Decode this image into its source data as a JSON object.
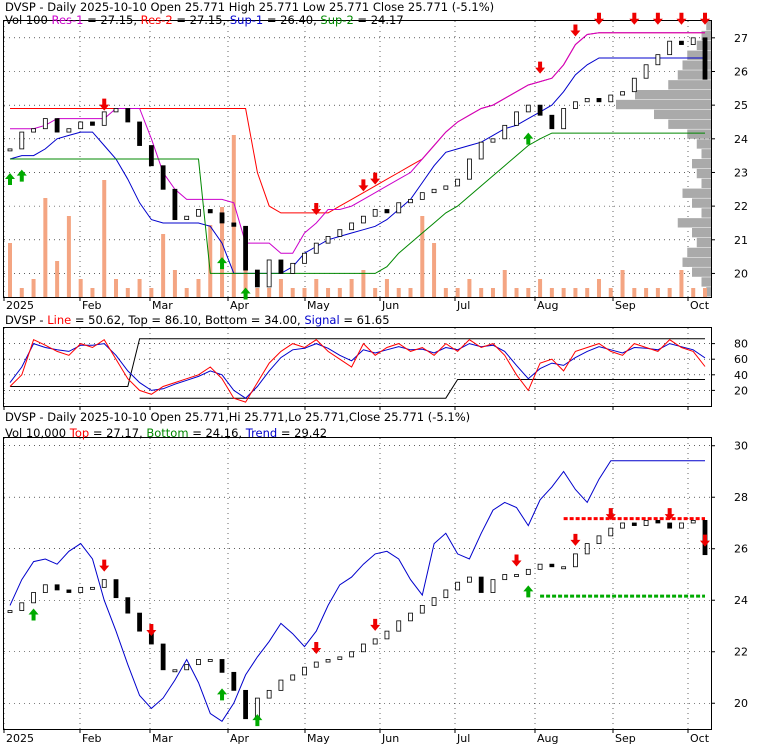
{
  "panels": {
    "p1": {
      "line1": [
        {
          "t": "DVSP - Daily 2025-10-10 Open 25.771  High 25.771  Low 25.771  Close 25.771 (-5.1%)",
          "c": "#000000"
        }
      ],
      "line2": [
        {
          "t": "Vol 100  ",
          "c": "#000000"
        },
        {
          "t": "Res-1",
          "c": "#cc00cc"
        },
        {
          "t": " = 27.15, ",
          "c": "#000000"
        },
        {
          "t": "Res-2",
          "c": "#ff0000"
        },
        {
          "t": " = 27.15, ",
          "c": "#000000"
        },
        {
          "t": "Sup-1",
          "c": "#0000cc"
        },
        {
          "t": " = 26.40, ",
          "c": "#000000"
        },
        {
          "t": "Sup-2",
          "c": "#008800"
        },
        {
          "t": " = 24.17",
          "c": "#000000"
        }
      ],
      "y_ticks": [
        "27",
        "26",
        "25",
        "24",
        "23",
        "22",
        "21",
        "20"
      ]
    },
    "p2": {
      "line1": [
        {
          "t": "DVSP - ",
          "c": "#000000"
        },
        {
          "t": "Line",
          "c": "#ff0000"
        },
        {
          "t": " = 50.62, ",
          "c": "#000000"
        },
        {
          "t": "Top",
          "c": "#000000"
        },
        {
          "t": " = 86.10, ",
          "c": "#000000"
        },
        {
          "t": "Bottom",
          "c": "#000000"
        },
        {
          "t": " = 34.00, ",
          "c": "#000000"
        },
        {
          "t": "Signal",
          "c": "#0000cc"
        },
        {
          "t": " = 61.65",
          "c": "#000000"
        }
      ],
      "y_ticks": [
        "80",
        "60",
        "40",
        "20"
      ]
    },
    "p3": {
      "line1": [
        {
          "t": "DVSP - Daily 2025-10-10 Open 25.771,Hi 25.771,Lo 25.771,Close 25.771 (-5.1%)",
          "c": "#000000"
        }
      ],
      "line2": [
        {
          "t": "Vol 10,000  ",
          "c": "#000000"
        },
        {
          "t": "Top",
          "c": "#ff0000"
        },
        {
          "t": " = 27.17, ",
          "c": "#000000"
        },
        {
          "t": "Bottom",
          "c": "#008800"
        },
        {
          "t": " = 24.16, ",
          "c": "#000000"
        },
        {
          "t": "Trend",
          "c": "#0000cc"
        },
        {
          "t": " = 29.42",
          "c": "#000000"
        }
      ],
      "y_ticks": [
        "30",
        "28",
        "26",
        "24",
        "22",
        "20"
      ]
    }
  },
  "x_axis_labels": [
    "2025",
    "Feb",
    "Mar",
    "Apr",
    "May",
    "Jun",
    "Jul",
    "Aug",
    "Sep",
    "Oct"
  ],
  "colors": {
    "up": "#000000",
    "down": "#000000",
    "res1": "#cc00cc",
    "res2": "#ff0000",
    "sup1": "#0000cc",
    "sup2": "#008800",
    "volume": "#f4a582",
    "profile": "#aaaaaa",
    "arrow_up": "#00aa00",
    "arrow_down": "#ee0000"
  },
  "chart_data": [
    {
      "type": "line",
      "panel": "price",
      "x_labels": [
        "2025",
        "Feb",
        "Mar",
        "Apr",
        "May",
        "Jun",
        "Jul",
        "Aug",
        "Sep",
        "Oct"
      ],
      "ylim": [
        19.3,
        27.5
      ],
      "close": [
        23.7,
        24.2,
        24.3,
        24.6,
        24.2,
        24.3,
        24.5,
        24.4,
        24.8,
        24.9,
        24.5,
        23.8,
        23.2,
        22.5,
        21.6,
        21.7,
        21.9,
        21.8,
        21.5,
        21.4,
        20.1,
        19.6,
        20.4,
        20.0,
        20.3,
        20.6,
        20.9,
        21.1,
        21.3,
        21.5,
        21.7,
        21.9,
        21.8,
        22.1,
        22.2,
        22.4,
        22.5,
        22.6,
        22.8,
        23.4,
        23.9,
        24.0,
        24.4,
        24.8,
        25.0,
        24.7,
        24.3,
        24.9,
        25.1,
        25.2,
        25.1,
        25.3,
        25.4,
        25.8,
        26.2,
        26.5,
        26.9,
        26.8,
        27.0,
        25.77
      ],
      "res1": [
        24.3,
        24.3,
        24.3,
        24.4,
        24.6,
        24.6,
        24.6,
        24.6,
        24.6,
        24.9,
        24.9,
        24.9,
        24.0,
        23.0,
        22.5,
        22.2,
        22.2,
        22.2,
        22.2,
        22.1,
        20.9,
        20.9,
        20.9,
        20.6,
        20.6,
        21.2,
        21.5,
        21.9,
        21.9,
        22.0,
        22.2,
        22.4,
        22.6,
        22.8,
        23.0,
        23.4,
        23.8,
        24.2,
        24.5,
        24.7,
        24.9,
        25.0,
        25.2,
        25.4,
        25.6,
        25.7,
        25.8,
        26.2,
        26.8,
        27.1,
        27.15,
        27.15,
        27.15,
        27.15,
        27.15,
        27.15,
        27.15,
        27.15,
        27.15,
        27.15
      ],
      "res2": [
        24.9,
        24.9,
        24.9,
        24.9,
        24.9,
        24.9,
        24.9,
        24.9,
        24.9,
        24.9,
        24.9,
        24.9,
        24.9,
        24.9,
        24.9,
        24.9,
        24.9,
        24.9,
        24.9,
        24.9,
        24.9,
        23.0,
        22.0,
        21.8,
        21.8,
        21.8,
        21.8,
        21.8,
        22.0,
        22.2,
        22.4,
        22.6,
        22.8,
        23.0,
        23.2,
        23.4,
        23.8,
        24.2,
        24.5,
        24.7,
        24.9,
        25.0,
        25.2,
        25.4,
        25.6,
        25.7,
        25.8,
        26.2,
        26.8,
        27.1,
        27.15,
        27.15,
        27.15,
        27.15,
        27.15,
        27.15,
        27.15,
        27.15,
        27.15,
        27.15
      ],
      "sup1": [
        23.4,
        23.5,
        23.5,
        23.7,
        24.0,
        24.1,
        24.2,
        24.2,
        23.8,
        23.4,
        22.8,
        22.1,
        21.6,
        21.5,
        21.5,
        21.5,
        21.5,
        21.4,
        20.9,
        20.0,
        20.0,
        20.0,
        20.0,
        20.0,
        20.2,
        20.6,
        20.8,
        21.0,
        21.1,
        21.2,
        21.3,
        21.4,
        21.6,
        21.9,
        22.2,
        22.7,
        23.2,
        23.6,
        23.7,
        23.8,
        23.9,
        24.1,
        24.3,
        24.4,
        24.6,
        24.8,
        25.0,
        25.4,
        25.9,
        26.2,
        26.4,
        26.4,
        26.4,
        26.4,
        26.4,
        26.4,
        26.4,
        26.4,
        26.4,
        26.4
      ],
      "sup2": [
        23.4,
        23.4,
        23.4,
        23.4,
        23.4,
        23.4,
        23.4,
        23.4,
        23.4,
        23.4,
        23.4,
        23.4,
        23.4,
        23.4,
        23.4,
        23.4,
        23.4,
        20.0,
        20.0,
        20.0,
        20.0,
        20.0,
        20.0,
        20.0,
        20.0,
        20.0,
        20.0,
        20.0,
        20.0,
        20.0,
        20.0,
        20.0,
        20.2,
        20.6,
        20.9,
        21.2,
        21.5,
        21.8,
        22.0,
        22.3,
        22.6,
        22.9,
        23.2,
        23.5,
        23.8,
        24.0,
        24.17,
        24.17,
        24.17,
        24.17,
        24.17,
        24.17,
        24.17,
        24.17,
        24.17,
        24.17,
        24.17,
        24.17,
        24.17,
        24.17
      ],
      "volume_peaks": [
        0.3,
        0.05,
        0.1,
        0.55,
        0.2,
        0.45,
        0.1,
        0.05,
        0.65,
        0.1,
        0.05,
        0.1,
        0.05,
        0.35,
        0.15,
        0.05,
        0.1,
        0.4,
        0.5,
        0.9,
        0.35,
        0.05,
        0.05,
        0.1,
        0.05,
        0.05,
        0.1,
        0.05,
        0.05,
        0.1,
        0.15,
        0.05,
        0.1,
        0.05,
        0.05,
        0.45,
        0.3,
        0.05,
        0.05,
        0.1,
        0.05,
        0.05,
        0.15,
        0.05,
        0.05,
        0.1,
        0.05,
        0.05,
        0.05,
        0.05,
        0.1,
        0.05,
        0.15,
        0.05,
        0.05,
        0.05,
        0.05,
        0.15,
        0.05,
        0.05
      ],
      "volume_profile": [
        0.05,
        0.1,
        0.15,
        0.25,
        0.3,
        0.35,
        0.45,
        0.8,
        1.0,
        0.6,
        0.45,
        0.25,
        0.15,
        0.1,
        0.2,
        0.15,
        0.1,
        0.3,
        0.2,
        0.1,
        0.35,
        0.2,
        0.15,
        0.25,
        0.3,
        0.2,
        0.1,
        0.05
      ]
    },
    {
      "type": "line",
      "panel": "oscillator",
      "ylim": [
        0,
        100
      ],
      "line": [
        25,
        40,
        85,
        78,
        70,
        65,
        80,
        75,
        85,
        60,
        35,
        20,
        15,
        25,
        30,
        35,
        40,
        50,
        35,
        10,
        5,
        30,
        55,
        70,
        80,
        75,
        85,
        70,
        60,
        50,
        80,
        65,
        75,
        80,
        70,
        75,
        65,
        80,
        70,
        85,
        75,
        80,
        65,
        40,
        20,
        55,
        60,
        45,
        70,
        75,
        80,
        70,
        65,
        80,
        75,
        70,
        85,
        75,
        70,
        50.62
      ],
      "signal": [
        30,
        50,
        80,
        75,
        72,
        70,
        78,
        78,
        80,
        65,
        45,
        30,
        20,
        22,
        28,
        33,
        38,
        45,
        40,
        20,
        10,
        25,
        45,
        62,
        72,
        74,
        80,
        74,
        65,
        58,
        72,
        68,
        72,
        76,
        72,
        73,
        68,
        75,
        72,
        80,
        76,
        78,
        70,
        52,
        35,
        48,
        55,
        52,
        62,
        70,
        76,
        72,
        68,
        75,
        74,
        72,
        80,
        76,
        72,
        61.65
      ],
      "top": [
        25,
        25,
        25,
        25,
        25,
        25,
        25,
        25,
        25,
        25,
        25,
        86.1,
        86.1,
        86.1,
        86.1,
        86.1,
        86.1,
        86.1,
        86.1,
        86.1,
        86.1,
        86.1,
        86.1,
        86.1,
        86.1,
        86.1,
        86.1,
        86.1,
        86.1,
        86.1,
        86.1,
        86.1,
        86.1,
        86.1,
        86.1,
        86.1,
        86.1,
        86.1,
        86.1,
        86.1,
        86.1,
        86.1,
        86.1,
        86.1,
        86.1,
        86.1,
        86.1,
        86.1,
        86.1,
        86.1,
        86.1,
        86.1,
        86.1,
        86.1,
        86.1,
        86.1,
        86.1,
        86.1,
        86.1,
        86.1
      ],
      "bottom": [
        null,
        null,
        null,
        null,
        null,
        null,
        null,
        null,
        null,
        null,
        null,
        10,
        10,
        10,
        10,
        10,
        10,
        10,
        10,
        10,
        10,
        10,
        10,
        10,
        10,
        10,
        10,
        10,
        10,
        10,
        10,
        10,
        10,
        10,
        10,
        10,
        10,
        10,
        34,
        34,
        34,
        34,
        34,
        34,
        34,
        34,
        34,
        34,
        34,
        34,
        34,
        34,
        34,
        34,
        34,
        34,
        34,
        34,
        34,
        34
      ]
    },
    {
      "type": "line",
      "panel": "trend",
      "ylim": [
        19.0,
        30.3
      ],
      "close": [
        23.6,
        23.9,
        24.3,
        24.6,
        24.4,
        24.3,
        24.5,
        24.5,
        24.8,
        24.1,
        23.5,
        22.8,
        22.3,
        21.3,
        21.3,
        21.5,
        21.7,
        21.7,
        21.2,
        20.5,
        19.4,
        20.2,
        20.5,
        20.9,
        21.1,
        21.4,
        21.6,
        21.7,
        21.8,
        22.0,
        22.3,
        22.5,
        22.8,
        23.2,
        23.5,
        23.8,
        24.1,
        24.4,
        24.7,
        24.9,
        24.3,
        24.8,
        25.0,
        25.0,
        25.2,
        25.4,
        25.3,
        25.3,
        25.8,
        26.2,
        26.5,
        26.8,
        27.0,
        26.9,
        27.1,
        27.0,
        26.8,
        27.0,
        27.1,
        25.77
      ],
      "trend": [
        23.8,
        24.8,
        25.5,
        25.6,
        25.4,
        25.9,
        26.2,
        25.6,
        24.0,
        22.8,
        21.5,
        20.3,
        19.8,
        20.2,
        20.9,
        21.7,
        20.8,
        19.6,
        19.3,
        20.0,
        21.1,
        21.8,
        22.4,
        23.1,
        22.7,
        22.2,
        22.8,
        23.8,
        24.6,
        24.9,
        25.4,
        25.8,
        25.9,
        25.6,
        24.8,
        24.2,
        26.2,
        26.6,
        25.8,
        25.6,
        26.6,
        27.5,
        27.8,
        27.6,
        26.9,
        27.9,
        28.4,
        29.0,
        28.3,
        27.8,
        28.7,
        29.42,
        29.42,
        29.42,
        29.42,
        29.42,
        29.42,
        29.42,
        29.42,
        29.42
      ],
      "top_level": 27.17,
      "bottom_level": 24.16
    }
  ]
}
